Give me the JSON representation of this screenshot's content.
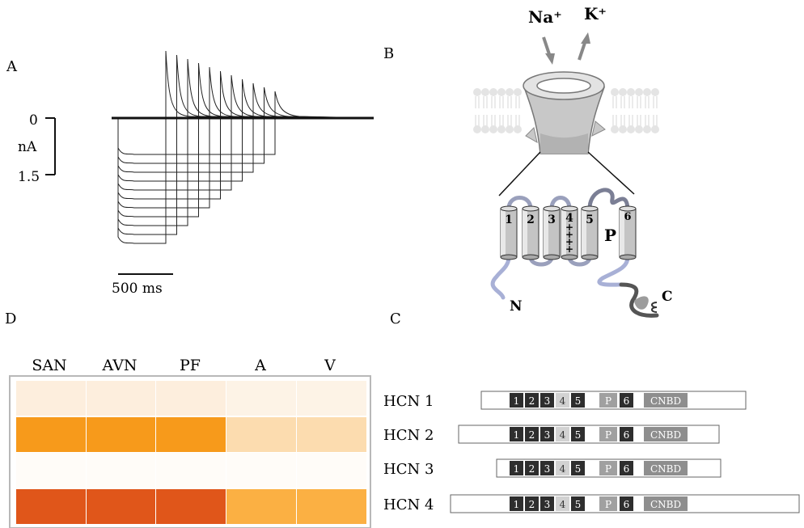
{
  "panels": {
    "a": {
      "letter": "A",
      "scale_top": "0",
      "scale_unit": "nA",
      "scale_bottom": "1.5",
      "time_bar": "500  ms"
    },
    "b": {
      "letter": "B",
      "ion_in": "Na⁺",
      "ion_out": "K⁺",
      "segments": [
        "1",
        "2",
        "3",
        "4",
        "5",
        "6"
      ],
      "s4_charges": [
        "+",
        "+",
        "+",
        "+"
      ],
      "pore": "P",
      "n_term": "N",
      "c_term": "C"
    },
    "c": {
      "letter": "C"
    },
    "d": {
      "letter": "D"
    }
  },
  "heatmap": {
    "columns": [
      "SAN",
      "AVN",
      "PF",
      "A",
      "V"
    ],
    "rows": [
      [
        "#fdeedd",
        "#fdeedd",
        "#fdeedd",
        "#fdf3e6",
        "#fdf3e6"
      ],
      [
        "#f79a1b",
        "#f79a1b",
        "#f79a1b",
        "#fcdcaf",
        "#fcdcaf"
      ],
      [
        "#fffcf8",
        "#fffcf8",
        "#fffcf8",
        "#fffcf8",
        "#fffcf8"
      ],
      [
        "#e0561a",
        "#e0561a",
        "#e0561a",
        "#fbb043",
        "#fbb043"
      ]
    ]
  },
  "hcn": [
    {
      "name": "HCN 1",
      "segments": [
        "1",
        "2",
        "3",
        "4",
        "5"
      ],
      "pore": "P",
      "s6": "6",
      "domain": "CNBD"
    },
    {
      "name": "HCN 2",
      "segments": [
        "1",
        "2",
        "3",
        "4",
        "5"
      ],
      "pore": "P",
      "s6": "6",
      "domain": "CNBD"
    },
    {
      "name": "HCN 3",
      "segments": [
        "1",
        "2",
        "3",
        "4",
        "5"
      ],
      "pore": "P",
      "s6": "6",
      "domain": "CNBD"
    },
    {
      "name": "HCN 4",
      "segments": [
        "1",
        "2",
        "3",
        "4",
        "5"
      ],
      "pore": "P",
      "s6": "6",
      "domain": "CNBD"
    }
  ],
  "colors": {
    "segment_dark": "#2b2b2b",
    "segment_light": "#d9d9d9",
    "pore_gray": "#9a9a9a",
    "cnbd_gray": "#8c8c8c"
  }
}
